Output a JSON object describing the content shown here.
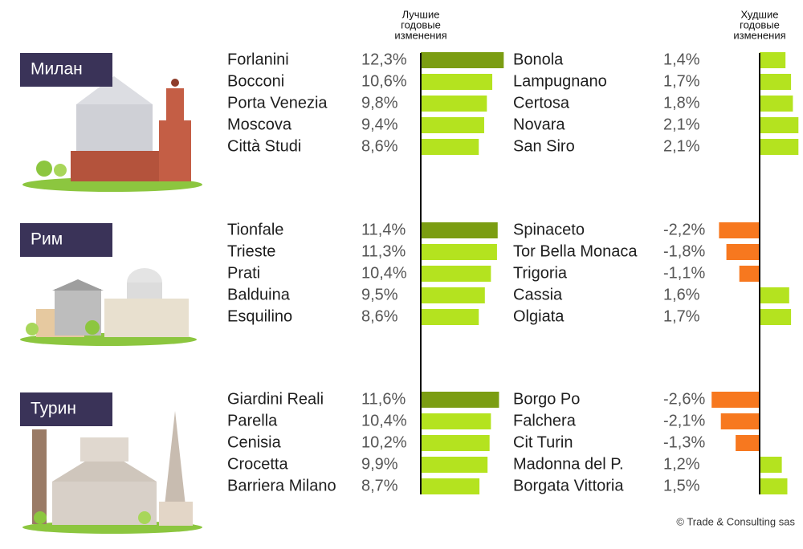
{
  "best_header": [
    "Лучшие",
    "годовые",
    "изменения"
  ],
  "worst_header": [
    "Худшие",
    "годовые",
    "изменения"
  ],
  "colors": {
    "top": "#7b9d12",
    "green": "#b4e31f",
    "negative": "#f7781f"
  },
  "cities": [
    {
      "name": "Милан",
      "best": {
        "categories": [
          "Forlanini",
          "Bocconi",
          "Porta Venezia",
          "Moscova",
          "Città Studi"
        ],
        "values": [
          12.3,
          10.6,
          9.8,
          9.4,
          8.6
        ],
        "value_labels": [
          "12,3%",
          "10,6%",
          "9,8%",
          "9,4%",
          "8,6%"
        ]
      },
      "worst": {
        "categories": [
          "Bonola",
          "Lampugnano",
          "Certosa",
          "Novara",
          "San Siro"
        ],
        "values": [
          1.4,
          1.7,
          1.8,
          2.1,
          2.1
        ],
        "value_labels": [
          "1,4%",
          "1,7%",
          "1,8%",
          "2,1%",
          "2,1%"
        ]
      }
    },
    {
      "name": "Рим",
      "best": {
        "categories": [
          "Tionfale",
          "Trieste",
          "Prati",
          "Balduina",
          "Esquilino"
        ],
        "values": [
          11.4,
          11.3,
          10.4,
          9.5,
          8.6
        ],
        "value_labels": [
          "11,4%",
          "11,3%",
          "10,4%",
          "9,5%",
          "8,6%"
        ]
      },
      "worst": {
        "categories": [
          "Spinaceto",
          "Tor Bella Monaca",
          "Trigoria",
          "Cassia",
          "Olgiata"
        ],
        "values": [
          -2.2,
          -1.8,
          -1.1,
          1.6,
          1.7
        ],
        "value_labels": [
          "-2,2%",
          "-1,8%",
          "-1,1%",
          "1,6%",
          "1,7%"
        ]
      }
    },
    {
      "name": "Турин",
      "best": {
        "categories": [
          "Giardini Reali",
          "Parella",
          "Cenisia",
          "Crocetta",
          "Barriera Milano"
        ],
        "values": [
          11.6,
          10.4,
          10.2,
          9.9,
          8.7
        ],
        "value_labels": [
          "11,6%",
          "10,4%",
          "10,2%",
          "9,9%",
          "8,7%"
        ]
      },
      "worst": {
        "categories": [
          "Borgo Po",
          "Falchera",
          "Cit Turin",
          "Madonna del P.",
          "Borgata Vittoria"
        ],
        "values": [
          -2.6,
          -2.1,
          -1.3,
          1.2,
          1.5
        ],
        "value_labels": [
          "-2,6%",
          "-2,1%",
          "-1,3%",
          "1,2%",
          "1,5%"
        ]
      }
    }
  ],
  "credit": "© Trade & Consulting sas"
}
